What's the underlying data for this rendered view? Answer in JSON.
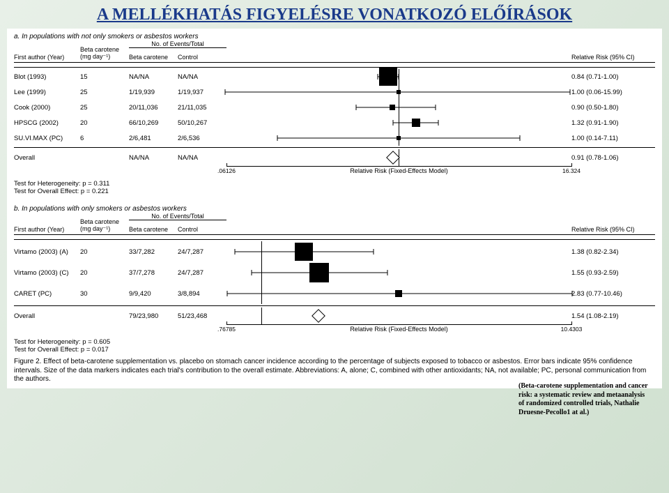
{
  "pageTitle": "A MELLÉKHATÁS FIGYELÉSRE VONATKOZÓ ELŐÍRÁSOK",
  "headers": {
    "groupLabel": "No. of Events/Total",
    "c1": "First author (Year)",
    "c2": "Beta carotene (mg day⁻¹)",
    "c3": "Beta carotene",
    "c4": "Control",
    "c6": "Relative Risk (95% CI)"
  },
  "plot": {
    "xmin_log": -2.8,
    "xmax_log": 2.8,
    "axisLabel": "Relative Risk (Fixed-Effects Model)"
  },
  "panelA": {
    "label": "a. In populations with not only smokers or asbestos workers",
    "ticks": {
      "left": ".06126",
      "right": "16.324"
    },
    "rows": [
      {
        "c1": "Blot (1993)",
        "c2": "15",
        "c3": "NA/NA",
        "c4": "NA/NA",
        "rr": 0.84,
        "lo": 0.71,
        "hi": 1.0,
        "txt": "0.84 (0.71-1.00)",
        "size": 26
      },
      {
        "c1": "Lee (1999)",
        "c2": "25",
        "c3": "1/19,939",
        "c4": "1/19,937",
        "rr": 1.0,
        "lo": 0.06,
        "hi": 15.99,
        "txt": "1.00 (0.06-15.99)",
        "size": 6
      },
      {
        "c1": "Cook (2000)",
        "c2": "25",
        "c3": "20/11,036",
        "c4": "21/11,035",
        "rr": 0.9,
        "lo": 0.5,
        "hi": 1.8,
        "txt": "0.90 (0.50-1.80)",
        "size": 8
      },
      {
        "c1": "HPSCG (2002)",
        "c2": "20",
        "c3": "66/10,269",
        "c4": "50/10,267",
        "rr": 1.32,
        "lo": 0.91,
        "hi": 1.9,
        "txt": "1.32 (0.91-1.90)",
        "size": 12
      },
      {
        "c1": "SU.VI.MAX (PC)",
        "c2": "6",
        "c3": "2/6,481",
        "c4": "2/6,536",
        "rr": 1.0,
        "lo": 0.14,
        "hi": 7.11,
        "txt": "1.00 (0.14-7.11)",
        "size": 6
      }
    ],
    "overall": {
      "c1": "Overall",
      "c3": "NA/NA",
      "c4": "NA/NA",
      "rr": 0.91,
      "txt": "0.91 (0.78-1.06)"
    },
    "tests": [
      "Test for Heterogeneity: p = 0.311",
      "Test for Overall Effect: p = 0.221"
    ]
  },
  "panelB": {
    "label": "b. In populations with only smokers or asbestos workers",
    "ticks": {
      "left": ".76785",
      "right": "10.4303"
    },
    "rows": [
      {
        "c1": "Virtamo (2003) (A)",
        "c2": "20",
        "c3": "33/7,282",
        "c4": "24/7,287",
        "rr": 1.38,
        "lo": 0.82,
        "hi": 2.34,
        "txt": "1.38 (0.82-2.34)",
        "size": 26
      },
      {
        "c1": "Virtamo (2003) (C)",
        "c2": "20",
        "c3": "37/7,278",
        "c4": "24/7,287",
        "rr": 1.55,
        "lo": 0.93,
        "hi": 2.59,
        "txt": "1.55 (0.93-2.59)",
        "size": 28
      },
      {
        "c1": "CARET (PC)",
        "c2": "30",
        "c3": "9/9,420",
        "c4": "3/8,894",
        "rr": 2.83,
        "lo": 0.77,
        "hi": 10.46,
        "txt": "2.83 (0.77-10.46)",
        "size": 10
      }
    ],
    "overall": {
      "c1": "Overall",
      "c3": "79/23,980",
      "c4": "51/23,468",
      "rr": 1.54,
      "txt": "1.54 (1.08-2.19)"
    },
    "tests": [
      "Test for Heterogeneity: p = 0.605",
      "Test for Overall Effect: p = 0.017"
    ]
  },
  "caption": "Figure 2. Effect of beta-carotene supplementation vs. placebo on stomach cancer incidence according to the percentage of subjects exposed to tobacco or asbestos. Error bars indicate 95% confidence intervals. Size of the data markers indicates each trial's contribution to the overall estimate. Abbreviations: A, alone; C, combined with other antioxidants; NA, not available; PC, personal communication from the authors.",
  "citation": "(Beta-carotene supplementation and cancer risk: a systematic review and metaanalysis of randomized controlled trials, Nathalie Druesne-Pecollo1 at al.)"
}
